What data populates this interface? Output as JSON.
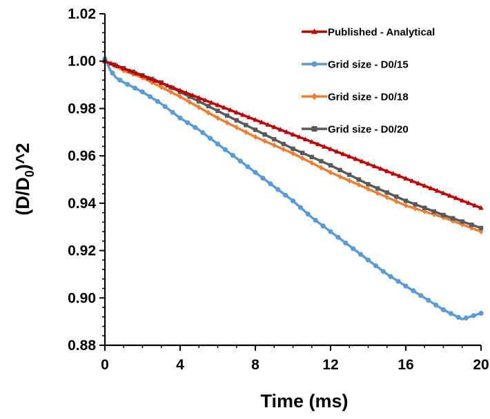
{
  "chart_data": {
    "type": "line",
    "title": "",
    "xlabel": "Time (ms)",
    "ylabel": {
      "prefix": "(D/D",
      "sub": "0",
      "suffix": ")^2"
    },
    "xlim": [
      0,
      20
    ],
    "ylim": [
      0.88,
      1.02
    ],
    "xticks": [
      0,
      4,
      8,
      12,
      16,
      20
    ],
    "yticks": [
      0.88,
      0.9,
      0.92,
      0.94,
      0.96,
      0.98,
      1.0,
      1.02
    ],
    "grid": false,
    "legend_position": "top-right",
    "series": [
      {
        "name": "Published - Analytical",
        "color": "#c00000",
        "marker": "triangle",
        "start": [
          0,
          1.0
        ],
        "end": [
          20,
          0.938
        ],
        "points": 60
      },
      {
        "name": "Grid size - D0/15",
        "color": "#5b9bd5",
        "marker": "circle",
        "x": [
          0,
          0.3,
          0.6,
          1,
          2,
          3,
          4,
          5,
          6,
          7,
          8,
          9,
          10,
          11,
          12,
          13,
          14,
          15,
          16,
          17,
          18,
          19,
          20
        ],
        "y": [
          1.001,
          0.996,
          0.993,
          0.991,
          0.987,
          0.982,
          0.976,
          0.971,
          0.965,
          0.959,
          0.953,
          0.947,
          0.941,
          0.934,
          0.928,
          0.922,
          0.916,
          0.91,
          0.905,
          0.9,
          0.895,
          0.891,
          0.8935
        ],
        "points": 50
      },
      {
        "name": "Grid size - D0/18",
        "color": "#ed7d31",
        "marker": "diamond",
        "x": [
          0,
          1,
          2,
          3,
          4,
          6,
          8,
          10,
          12,
          14,
          16,
          18,
          20
        ],
        "y": [
          1.0,
          0.996,
          0.993,
          0.989,
          0.985,
          0.976,
          0.968,
          0.961,
          0.953,
          0.946,
          0.939,
          0.934,
          0.928
        ],
        "points": 40
      },
      {
        "name": "Grid size - D0/20",
        "color": "#595959",
        "marker": "square",
        "x": [
          0,
          1,
          2,
          3,
          4,
          6,
          8,
          10,
          12,
          14,
          16,
          18,
          20
        ],
        "y": [
          1.0,
          0.997,
          0.994,
          0.991,
          0.987,
          0.979,
          0.971,
          0.963,
          0.956,
          0.948,
          0.941,
          0.935,
          0.9295
        ],
        "points": 40
      }
    ]
  }
}
